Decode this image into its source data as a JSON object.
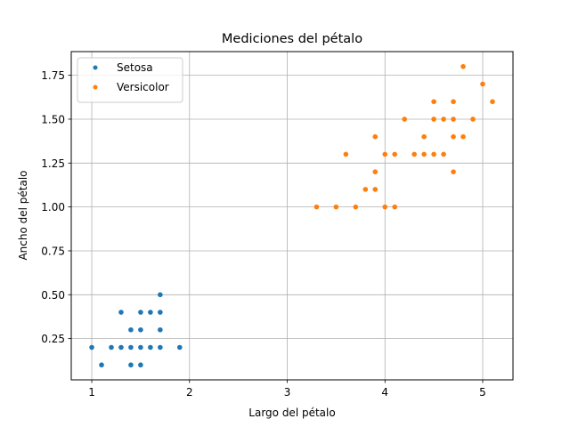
{
  "chart_data": {
    "type": "scatter",
    "title": "Mediciones del pétalo",
    "xlabel": "Largo del pétalo",
    "ylabel": "Ancho del pétalo",
    "xlim": [
      0.79,
      5.31
    ],
    "ylim": [
      0.015,
      1.885
    ],
    "x_ticks": [
      1,
      2,
      3,
      4,
      5
    ],
    "x_tick_labels": [
      "1",
      "2",
      "3",
      "4",
      "5"
    ],
    "y_ticks": [
      0.25,
      0.5,
      0.75,
      1.0,
      1.25,
      1.5,
      1.75
    ],
    "y_tick_labels": [
      "0.25",
      "0.50",
      "0.75",
      "1.00",
      "1.25",
      "1.50",
      "1.75"
    ],
    "grid": true,
    "legend_position": "top-left",
    "series": [
      {
        "name": "Setosa",
        "color": "#1f77b4",
        "points": [
          [
            1.0,
            0.2
          ],
          [
            1.1,
            0.1
          ],
          [
            1.2,
            0.2
          ],
          [
            1.3,
            0.2
          ],
          [
            1.3,
            0.4
          ],
          [
            1.4,
            0.2
          ],
          [
            1.4,
            0.3
          ],
          [
            1.4,
            0.1
          ],
          [
            1.5,
            0.2
          ],
          [
            1.5,
            0.4
          ],
          [
            1.5,
            0.1
          ],
          [
            1.5,
            0.3
          ],
          [
            1.6,
            0.2
          ],
          [
            1.6,
            0.4
          ],
          [
            1.7,
            0.5
          ],
          [
            1.7,
            0.4
          ],
          [
            1.7,
            0.3
          ],
          [
            1.7,
            0.2
          ],
          [
            1.9,
            0.2
          ]
        ]
      },
      {
        "name": "Versicolor",
        "color": "#ff7f0e",
        "points": [
          [
            3.3,
            1.0
          ],
          [
            3.5,
            1.0
          ],
          [
            3.6,
            1.3
          ],
          [
            3.7,
            1.0
          ],
          [
            3.8,
            1.1
          ],
          [
            3.9,
            1.1
          ],
          [
            3.9,
            1.2
          ],
          [
            3.9,
            1.4
          ],
          [
            4.0,
            1.0
          ],
          [
            4.0,
            1.3
          ],
          [
            4.1,
            1.0
          ],
          [
            4.1,
            1.3
          ],
          [
            4.2,
            1.5
          ],
          [
            4.3,
            1.3
          ],
          [
            4.4,
            1.3
          ],
          [
            4.4,
            1.4
          ],
          [
            4.5,
            1.5
          ],
          [
            4.5,
            1.6
          ],
          [
            4.5,
            1.3
          ],
          [
            4.6,
            1.5
          ],
          [
            4.6,
            1.3
          ],
          [
            4.7,
            1.4
          ],
          [
            4.7,
            1.6
          ],
          [
            4.7,
            1.5
          ],
          [
            4.7,
            1.2
          ],
          [
            4.8,
            1.8
          ],
          [
            4.8,
            1.4
          ],
          [
            4.9,
            1.5
          ],
          [
            5.0,
            1.7
          ],
          [
            5.1,
            1.6
          ]
        ]
      }
    ]
  }
}
